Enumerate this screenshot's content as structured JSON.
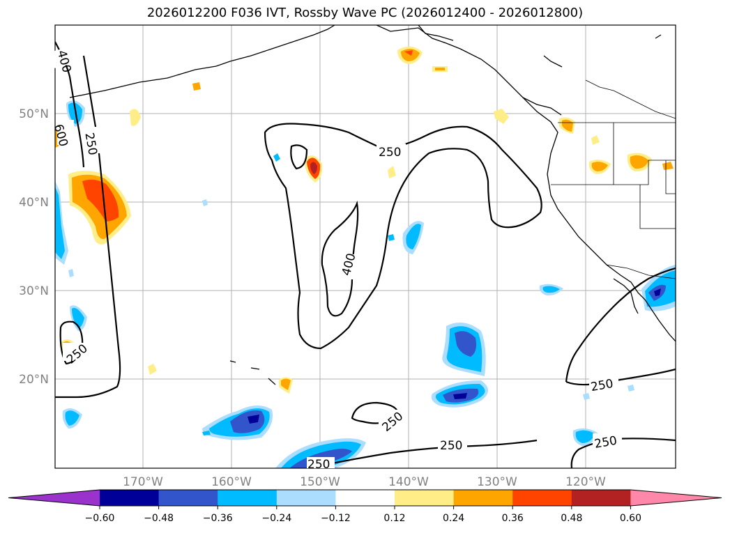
{
  "title": "2026012200 F036 IVT, Rossby Wave PC (2026012400 - 2026012800)",
  "map": {
    "lat_labels": [
      "50°N",
      "40°N",
      "30°N",
      "20°N"
    ],
    "lon_labels": [
      "170°W",
      "160°W",
      "150°W",
      "140°W",
      "130°W",
      "120°W"
    ],
    "contour_labels": [
      "400",
      "600",
      "250",
      "250",
      "400",
      "250",
      "250",
      "250",
      "250",
      "250",
      "250"
    ]
  },
  "colorbar": {
    "ticks": [
      "−0.60",
      "−0.48",
      "−0.36",
      "−0.24",
      "−0.12",
      "0.12",
      "0.24",
      "0.36",
      "0.48",
      "0.60"
    ],
    "colors": [
      "#9933cc",
      "#000099",
      "#3355cc",
      "#00bbff",
      "#aaddff",
      "#ffffff",
      "#ffee88",
      "#ffa500",
      "#ff4400",
      "#b22222",
      "#ff88aa"
    ]
  }
}
